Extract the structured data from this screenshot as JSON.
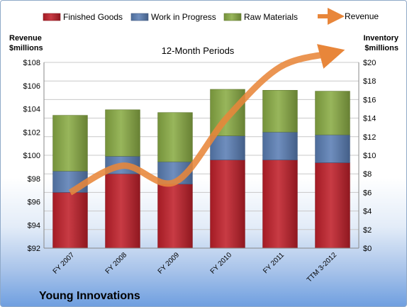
{
  "footer_title": "Young Innovations",
  "chart_data": {
    "type": "bar",
    "title": "12-Month Periods",
    "categories": [
      "FY 2007",
      "FY 2008",
      "FY 2009",
      "FY 2010",
      "FY 2011",
      "TTM 3-2012"
    ],
    "stacked": true,
    "series": [
      {
        "name": "Finished Goods",
        "axis": "right",
        "color": "#c0202a",
        "values": [
          6.0,
          8.0,
          6.9,
          9.5,
          9.5,
          9.2
        ]
      },
      {
        "name": "Work in Progress",
        "axis": "right",
        "color": "#5b7fb5",
        "values": [
          2.3,
          1.9,
          2.4,
          2.6,
          3.0,
          3.0
        ]
      },
      {
        "name": "Raw Materials",
        "axis": "right",
        "color": "#8aac45",
        "values": [
          6.0,
          5.0,
          5.3,
          5.0,
          4.5,
          4.7
        ]
      },
      {
        "name": "Revenue",
        "axis": "left",
        "type": "line",
        "color": "#e8863a",
        "values": [
          96.8,
          99.1,
          97.7,
          103.3,
          107.6,
          108.8
        ]
      }
    ],
    "ylabel_left": [
      "Revenue",
      "$millions"
    ],
    "ylabel_right": [
      "Inventory",
      "$millions"
    ],
    "ylim_left": [
      92,
      108
    ],
    "ylim_right": [
      0,
      20
    ],
    "yticks_left": [
      "$92",
      "$94",
      "$96",
      "$98",
      "$100",
      "$102",
      "$104",
      "$106",
      "$108"
    ],
    "yticks_right": [
      "$0",
      "$2",
      "$4",
      "$6",
      "$8",
      "$10",
      "$12",
      "$14",
      "$16",
      "$18",
      "$20"
    ],
    "grid": true,
    "legend_position": "top"
  }
}
